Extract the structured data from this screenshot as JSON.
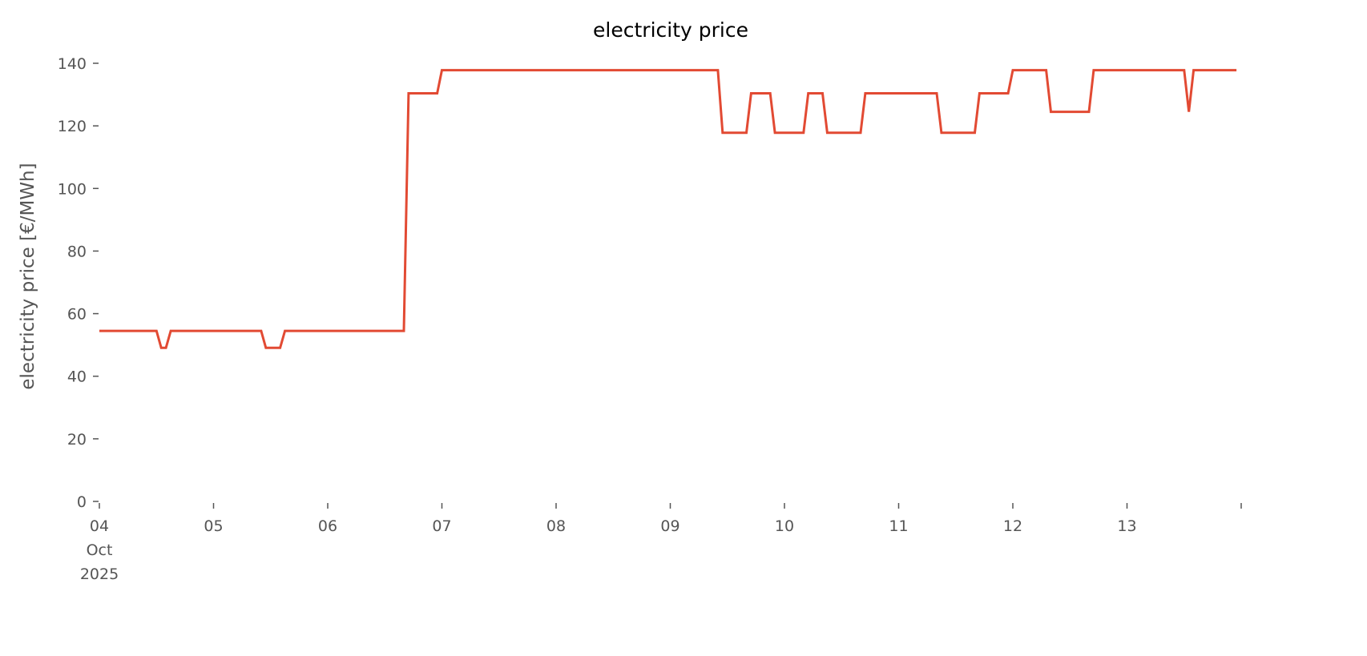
{
  "chart_data": {
    "type": "line",
    "title": "electricity price",
    "xlabel": "",
    "ylabel": "electricity price [€/MWh]",
    "ylim": [
      0,
      140
    ],
    "xlim": [
      "2025-10-04T00:00",
      "2025-10-14T00:00"
    ],
    "grid": false,
    "yticks": [
      0,
      20,
      40,
      60,
      80,
      100,
      120,
      140
    ],
    "xticks": [
      {
        "date": "2025-10-04",
        "label": [
          "04",
          "Oct",
          "2025"
        ]
      },
      {
        "date": "2025-10-05",
        "label": [
          "05"
        ]
      },
      {
        "date": "2025-10-06",
        "label": [
          "06"
        ]
      },
      {
        "date": "2025-10-07",
        "label": [
          "07"
        ]
      },
      {
        "date": "2025-10-08",
        "label": [
          "08"
        ]
      },
      {
        "date": "2025-10-09",
        "label": [
          "09"
        ]
      },
      {
        "date": "2025-10-10",
        "label": [
          "10"
        ]
      },
      {
        "date": "2025-10-11",
        "label": [
          "11"
        ]
      },
      {
        "date": "2025-10-12",
        "label": [
          "12"
        ]
      },
      {
        "date": "2025-10-13",
        "label": [
          "13"
        ]
      },
      {
        "date": "2025-10-14",
        "label": []
      }
    ],
    "colors": {
      "line": "#E24A33",
      "tick_text": "#555555",
      "title": "#000000"
    },
    "series": [
      {
        "points": [
          [
            "2025-10-04T00:00",
            54.5
          ],
          [
            "2025-10-04T12:00",
            54.5
          ],
          [
            "2025-10-04T13:00",
            49.1
          ],
          [
            "2025-10-04T14:00",
            49.1
          ],
          [
            "2025-10-04T15:00",
            54.5
          ],
          [
            "2025-10-05T10:00",
            54.5
          ],
          [
            "2025-10-05T11:00",
            49.1
          ],
          [
            "2025-10-05T14:00",
            49.1
          ],
          [
            "2025-10-05T15:00",
            54.5
          ],
          [
            "2025-10-06T16:00",
            54.5
          ],
          [
            "2025-10-06T17:00",
            130.4
          ],
          [
            "2025-10-06T23:00",
            130.4
          ],
          [
            "2025-10-07T00:00",
            137.8
          ],
          [
            "2025-10-09T10:00",
            137.8
          ],
          [
            "2025-10-09T11:00",
            117.8
          ],
          [
            "2025-10-09T16:00",
            117.8
          ],
          [
            "2025-10-09T17:00",
            130.4
          ],
          [
            "2025-10-09T21:00",
            130.4
          ],
          [
            "2025-10-09T22:00",
            117.8
          ],
          [
            "2025-10-10T04:00",
            117.8
          ],
          [
            "2025-10-10T05:00",
            130.4
          ],
          [
            "2025-10-10T08:00",
            130.4
          ],
          [
            "2025-10-10T09:00",
            117.8
          ],
          [
            "2025-10-10T16:00",
            117.8
          ],
          [
            "2025-10-10T17:00",
            130.4
          ],
          [
            "2025-10-11T08:00",
            130.4
          ],
          [
            "2025-10-11T09:00",
            117.8
          ],
          [
            "2025-10-11T16:00",
            117.8
          ],
          [
            "2025-10-11T17:00",
            130.4
          ],
          [
            "2025-10-11T23:00",
            130.4
          ],
          [
            "2025-10-12T00:00",
            137.8
          ],
          [
            "2025-10-12T07:00",
            137.8
          ],
          [
            "2025-10-12T08:00",
            124.5
          ],
          [
            "2025-10-12T16:00",
            124.5
          ],
          [
            "2025-10-12T17:00",
            137.8
          ],
          [
            "2025-10-13T12:00",
            137.8
          ],
          [
            "2025-10-13T13:00",
            124.5
          ],
          [
            "2025-10-13T14:00",
            137.8
          ],
          [
            "2025-10-13T23:00",
            137.8
          ]
        ]
      }
    ]
  }
}
